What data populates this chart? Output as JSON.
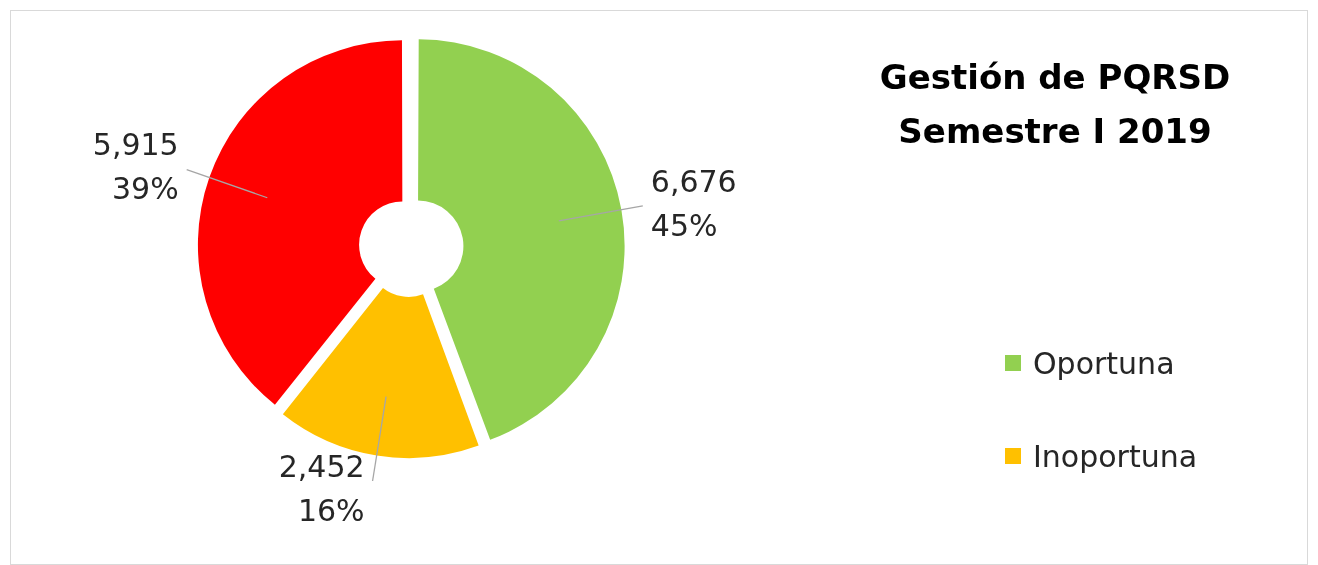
{
  "chart_data": {
    "type": "donut",
    "title": "Gestión de PQRSD\nSemestre I 2019",
    "categories": [
      "Oportuna",
      "Inoportuna",
      null
    ],
    "values": [
      6676,
      2452,
      5915
    ],
    "colors": [
      "#92d050",
      "#ffc000",
      "#ff0000"
    ],
    "value_labels": [
      "6,676\n45%",
      "2,452\n16%",
      "5,915\n39%"
    ],
    "legend": "right"
  }
}
